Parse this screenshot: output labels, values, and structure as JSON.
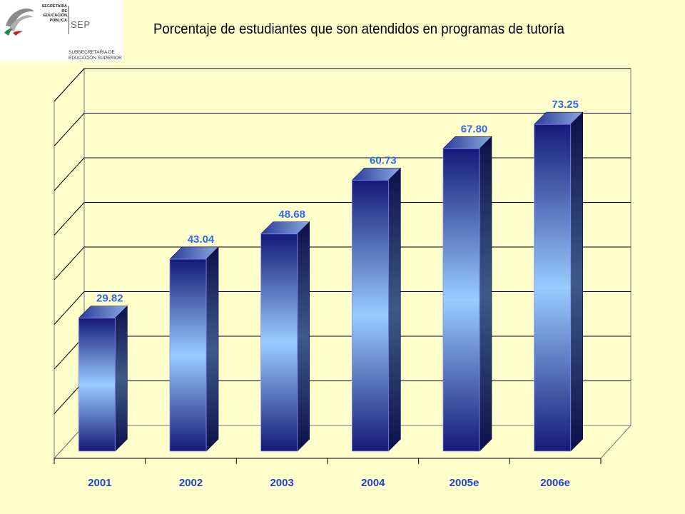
{
  "logo": {
    "secretaria_line1": "SECRETARÍA DE",
    "secretaria_line2": "EDUCACIÓN",
    "secretaria_line3": "PÚBLICA",
    "sep": "SEP",
    "sub_line1": "SUBSECRETARIA DE",
    "sub_line2": "EDUCACION SUPERIOR"
  },
  "chart_data": {
    "type": "bar",
    "title": "Porcentaje de estudiantes que son atendidos en programas de tutoría",
    "categories": [
      "2001",
      "2002",
      "2003",
      "2004",
      "2005e",
      "2006e"
    ],
    "values": [
      29.82,
      43.04,
      48.68,
      60.73,
      67.8,
      73.25
    ],
    "data_labels": [
      "29.82",
      "43.04",
      "48.68",
      "60.73",
      "67.80",
      "73.25"
    ],
    "ylim": [
      0,
      80
    ],
    "grid": true,
    "legend": "none",
    "style": "3d-column",
    "colors": {
      "bar_dark": "#141a78",
      "bar_light": "#99ccff",
      "grid": "#000000",
      "labels": "#2244cc"
    }
  }
}
